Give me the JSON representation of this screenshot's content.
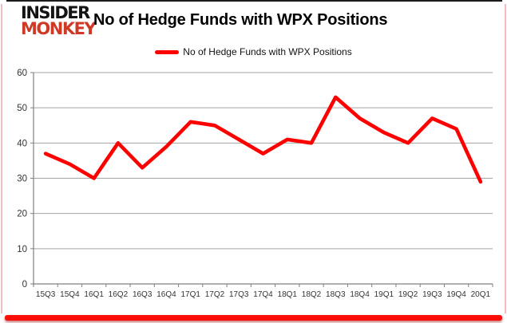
{
  "brand": {
    "line1": "INSIDER",
    "line2": "MONKEY",
    "color1": "#141414",
    "color2": "#cf3a27"
  },
  "header": {
    "title": "No of Hedge Funds with WPX Positions"
  },
  "legend": {
    "label": "No of Hedge Funds with WPX Positions",
    "swatch_color": "#ff0000"
  },
  "chart_data": {
    "type": "line",
    "title": "No of Hedge Funds with WPX Positions",
    "categories": [
      "15Q3",
      "15Q4",
      "16Q1",
      "16Q2",
      "16Q3",
      "16Q4",
      "17Q1",
      "17Q2",
      "17Q3",
      "17Q4",
      "18Q1",
      "18Q2",
      "18Q3",
      "18Q4",
      "19Q1",
      "19Q2",
      "19Q3",
      "19Q4",
      "20Q1"
    ],
    "series": [
      {
        "name": "No of Hedge Funds with WPX Positions",
        "color": "#ff0000",
        "values": [
          37,
          34,
          30,
          40,
          33,
          39,
          46,
          45,
          41,
          37,
          41,
          40,
          53,
          47,
          43,
          40,
          47,
          44,
          29
        ]
      }
    ],
    "xlabel": "",
    "ylabel": "",
    "ylim": [
      0,
      60
    ],
    "yticks": [
      0,
      10,
      20,
      30,
      40,
      50,
      60
    ],
    "grid": true,
    "legend_position": "top",
    "gridline_color": "#a3a3a3",
    "axis_color": "#808080",
    "label_color": "#333333"
  },
  "frame": {
    "top_border": "#1b1b1b",
    "side_border": "#f2bdb8",
    "bottom_bar": "#fb0d08"
  }
}
